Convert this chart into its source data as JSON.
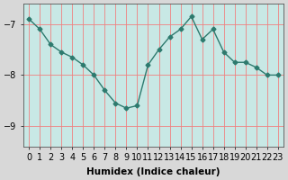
{
  "x": [
    0,
    1,
    2,
    3,
    4,
    5,
    6,
    7,
    8,
    9,
    10,
    11,
    12,
    13,
    14,
    15,
    16,
    17,
    18,
    19,
    20,
    21,
    22,
    23
  ],
  "y": [
    -6.9,
    -7.1,
    -7.4,
    -7.55,
    -7.65,
    -7.8,
    -8.0,
    -8.3,
    -8.55,
    -8.65,
    -8.6,
    -7.8,
    -7.5,
    -7.25,
    -7.1,
    -6.85,
    -7.3,
    -7.1,
    -7.55,
    -7.75,
    -7.75,
    -7.85,
    -8.0,
    -8.0
  ],
  "line_color": "#2d7a6e",
  "marker": "D",
  "marker_size": 2.5,
  "line_width": 1.0,
  "plot_bg_color": "#c8e8e5",
  "fig_bg_color": "#d8d8d8",
  "grid_color": "#f08080",
  "xlabel": "Humidex (Indice chaleur)",
  "xlim": [
    -0.5,
    23.5
  ],
  "ylim": [
    -9.4,
    -6.6
  ],
  "yticks": [
    -9,
    -8,
    -7
  ],
  "xlabel_fontsize": 7.5,
  "tick_fontsize": 7
}
